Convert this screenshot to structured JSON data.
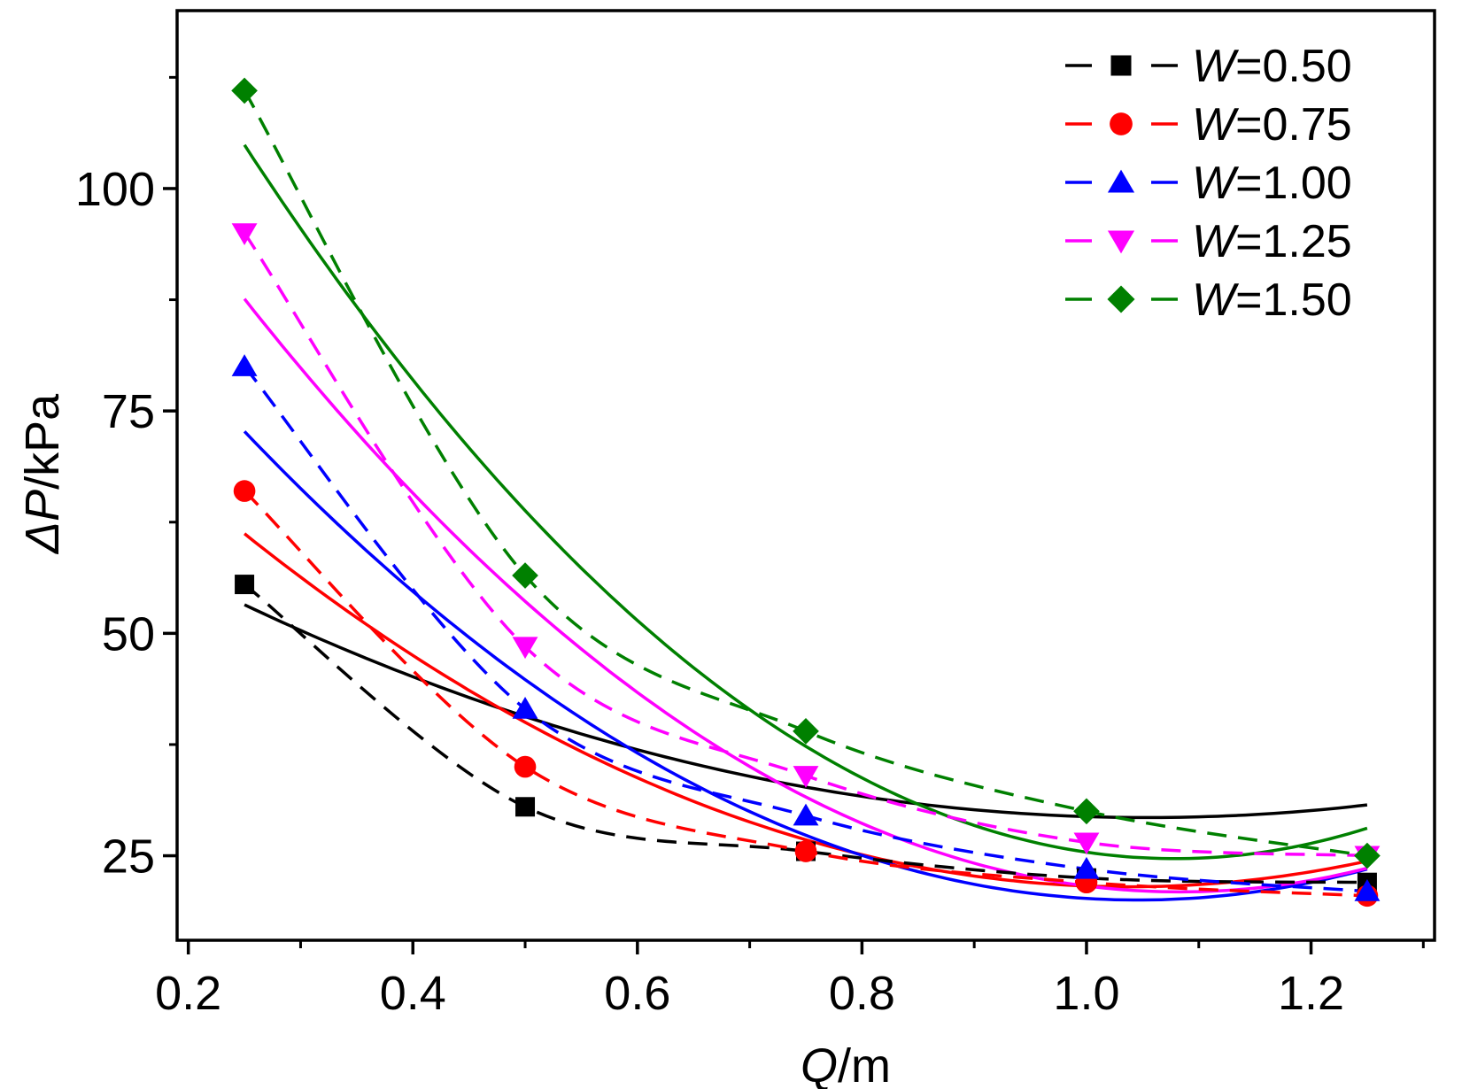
{
  "chart_data": {
    "type": "line",
    "title": "",
    "xlabel": "Q/m",
    "ylabel": "ΔP/kPa",
    "xlabel_parts": {
      "var": "Q",
      "unit": "/m"
    },
    "ylabel_parts": {
      "var": "ΔP",
      "unit": "/kPa"
    },
    "xlim": [
      0.19,
      1.31
    ],
    "ylim": [
      15.5,
      120
    ],
    "x_ticks": [
      0.2,
      0.4,
      0.6,
      0.8,
      1.0,
      1.2
    ],
    "x_tick_labels": [
      "0.2",
      "0.4",
      "0.6",
      "0.8",
      "1.0",
      "1.2"
    ],
    "x_minor_ticks": [
      0.3,
      0.5,
      0.7,
      0.9,
      1.1,
      1.3
    ],
    "y_ticks": [
      25,
      50,
      75,
      100
    ],
    "y_tick_labels": [
      "25",
      "50",
      "75",
      "100"
    ],
    "y_minor_ticks": [
      37.5,
      62.5,
      87.5,
      112.5
    ],
    "grid": false,
    "legend_position": "top-right",
    "x": [
      0.25,
      0.5,
      0.75,
      1.0,
      1.25
    ],
    "series": [
      {
        "name": "W=0.50",
        "label_var": "W",
        "label_value": "=0.50",
        "color": "#000000",
        "marker": "square",
        "values": [
          55.5,
          30.5,
          25.5,
          22.5,
          22.0
        ],
        "fit": [
          70.4,
          -78.0,
          37.0
        ]
      },
      {
        "name": "W=0.75",
        "label_var": "W",
        "label_value": "=0.75",
        "color": "#ff0000",
        "marker": "circle",
        "values": [
          66.0,
          35.0,
          25.5,
          22.0,
          20.5
        ],
        "fit": [
          90.4,
          -132.8,
          64.0
        ]
      },
      {
        "name": "W=1.00",
        "label_var": "W",
        "label_value": "=1.00",
        "color": "#0000ff",
        "marker": "triangle-up",
        "values": [
          80.0,
          41.5,
          29.5,
          23.5,
          21.0
        ],
        "fit": [
          111.0,
          -174.0,
          83.2
        ]
      },
      {
        "name": "W=1.25",
        "label_var": "W",
        "label_value": "=1.25",
        "color": "#ff00ff",
        "marker": "triangle-down",
        "values": [
          95.0,
          48.5,
          34.0,
          26.5,
          25.0
        ],
        "fit": [
          133.6,
          -208.0,
          96.0
        ]
      },
      {
        "name": "W=1.50",
        "label_var": "W",
        "label_value": "=1.50",
        "color": "#008000",
        "marker": "diamond",
        "values": [
          111.0,
          56.5,
          39.0,
          30.0,
          25.0
        ],
        "fit": [
          160.6,
          -252.0,
          116.8
        ]
      }
    ]
  }
}
